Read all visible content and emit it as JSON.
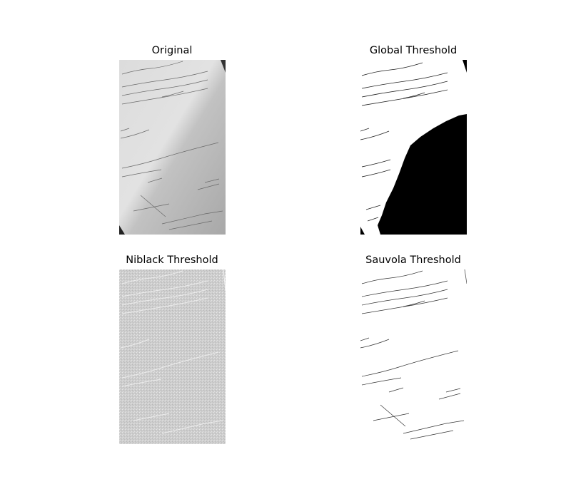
{
  "figure": {
    "panels": [
      {
        "title": "Original",
        "style": "grayscale-photo"
      },
      {
        "title": "Global Threshold",
        "style": "binary-global"
      },
      {
        "title": "Niblack Threshold",
        "style": "binary-niblack"
      },
      {
        "title": "Sauvola Threshold",
        "style": "binary-sauvola"
      }
    ]
  },
  "colors": {
    "background": "#ffffff",
    "ink": "#222222",
    "paper_light": "#e6e6e6",
    "paper_mid": "#b4b4b4",
    "niblack_gray": "#c8c8c8"
  }
}
